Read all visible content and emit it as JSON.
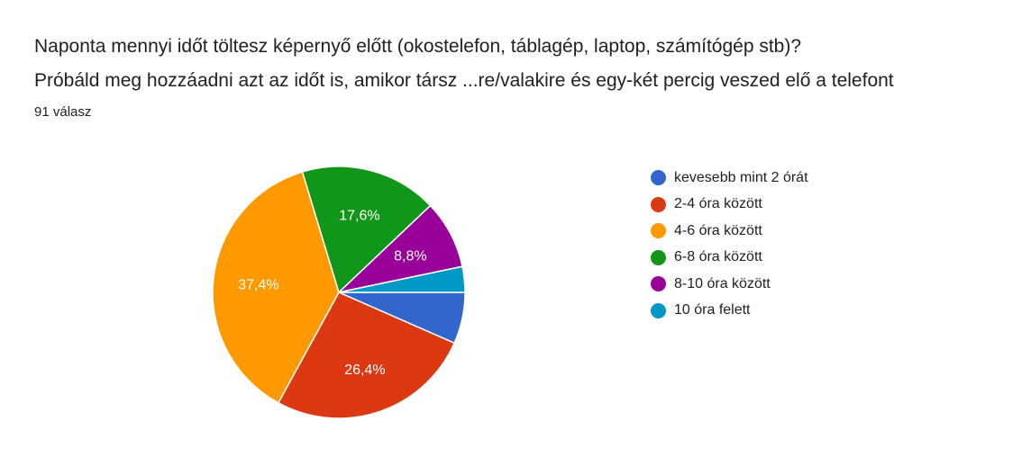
{
  "header": {
    "title_line1": "Naponta mennyi időt töltesz képernyő előtt (okostelefon, táblagép, laptop, számítógép stb)?",
    "title_line2": "Próbáld meg hozzáadni azt az időt is, amikor társz ...re/valakire és egy-két percig veszed elő a telefont",
    "response_count": "91 válasz"
  },
  "chart_data": {
    "type": "pie",
    "title": "Naponta mennyi időt töltesz képernyő előtt (okostelefon, táblagép, laptop, számítógép stb)? Próbáld meg hozzáadni azt az időt is, amikor társz ...re/valakire és egy-két percig veszed elő a telefont",
    "total_responses": 91,
    "legend_position": "right",
    "slices": [
      {
        "label": "kevesebb mint 2 órát",
        "percent": 6.6,
        "display": "",
        "color": "#3366cc"
      },
      {
        "label": "2-4 óra között",
        "percent": 26.4,
        "display": "26,4%",
        "color": "#dc3912"
      },
      {
        "label": "4-6 óra között",
        "percent": 37.4,
        "display": "37,4%",
        "color": "#ff9900"
      },
      {
        "label": "6-8 óra között",
        "percent": 17.6,
        "display": "17,6%",
        "color": "#109618"
      },
      {
        "label": "8-10 óra között",
        "percent": 8.8,
        "display": "8,8%",
        "color": "#990099"
      },
      {
        "label": "10 óra felett",
        "percent": 3.3,
        "display": "",
        "color": "#0099c6"
      }
    ]
  }
}
